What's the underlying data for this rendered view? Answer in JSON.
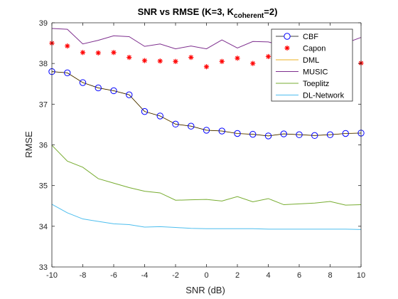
{
  "chart_data": {
    "type": "line",
    "title": {
      "main": "SNR vs RMSE (K=3, K",
      "subscript": "coherent",
      "tail": "=2)"
    },
    "xlabel": "SNR (dB)",
    "ylabel": "RMSE",
    "xlim": [
      -10,
      10
    ],
    "ylim": [
      33,
      39
    ],
    "xticks": [
      -10,
      -8,
      -6,
      -4,
      -2,
      0,
      2,
      4,
      6,
      8,
      10
    ],
    "yticks": [
      33,
      34,
      35,
      36,
      37,
      38,
      39
    ],
    "grid": false,
    "legend_position": "top-right",
    "x": [
      -10,
      -9,
      -8,
      -7,
      -6,
      -5,
      -4,
      -3,
      -2,
      -1,
      0,
      1,
      2,
      3,
      4,
      5,
      6,
      7,
      8,
      9,
      10
    ],
    "series": [
      {
        "name": "CBF",
        "color": "#0000ff",
        "line_color": "#000000",
        "marker": "circle",
        "style": "line-marker",
        "values": [
          37.8,
          37.77,
          37.53,
          37.4,
          37.33,
          37.23,
          36.82,
          36.71,
          36.51,
          36.46,
          36.36,
          36.34,
          36.28,
          36.26,
          36.22,
          36.27,
          36.25,
          36.23,
          36.25,
          36.28,
          36.29
        ]
      },
      {
        "name": "Capon",
        "color": "#ff0000",
        "marker": "asterisk",
        "style": "marker-only",
        "values": [
          38.5,
          38.43,
          38.27,
          38.26,
          38.27,
          38.15,
          38.07,
          38.06,
          38.05,
          38.15,
          37.92,
          38.05,
          38.13,
          38.0,
          38.17,
          38.12,
          38.06,
          38.12,
          38.09,
          38.11,
          38.01
        ]
      },
      {
        "name": "DML",
        "color": "#edb120",
        "style": "line",
        "values": [
          37.8,
          37.77,
          37.53,
          37.4,
          37.33,
          37.23,
          36.82,
          36.71,
          36.51,
          36.46,
          36.36,
          36.34,
          36.28,
          36.26,
          36.22,
          36.27,
          36.25,
          36.23,
          36.25,
          36.28,
          36.29
        ]
      },
      {
        "name": "MUSIC",
        "color": "#7e2f8e",
        "style": "line",
        "values": [
          38.86,
          38.84,
          38.48,
          38.57,
          38.68,
          38.66,
          38.42,
          38.48,
          38.36,
          38.43,
          38.36,
          38.58,
          38.38,
          38.54,
          38.53,
          38.43,
          38.61,
          38.45,
          38.58,
          38.5,
          38.64
        ]
      },
      {
        "name": "Toeplitz",
        "color": "#77ac30",
        "style": "line",
        "values": [
          35.99,
          35.6,
          35.45,
          35.17,
          35.06,
          34.95,
          34.86,
          34.82,
          34.64,
          34.65,
          34.66,
          34.62,
          34.73,
          34.6,
          34.68,
          34.53,
          34.55,
          34.57,
          34.61,
          34.52,
          34.53
        ]
      },
      {
        "name": "DL-Network",
        "color": "#4dbeee",
        "style": "line",
        "values": [
          34.54,
          34.33,
          34.18,
          34.12,
          34.06,
          34.04,
          33.98,
          33.99,
          33.97,
          33.95,
          33.94,
          33.94,
          33.94,
          33.94,
          33.93,
          33.93,
          33.93,
          33.93,
          33.93,
          33.93,
          33.92
        ]
      }
    ]
  }
}
